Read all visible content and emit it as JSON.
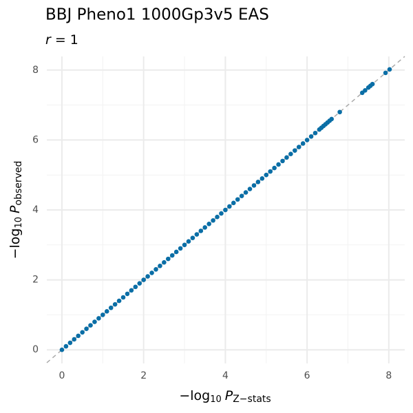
{
  "chart_data": {
    "type": "scatter",
    "title": "BBJ Pheno1 1000Gp3v5 EAS",
    "subtitle": {
      "var": "r",
      "rest": "= 1"
    },
    "x_label": {
      "prefix": "−log",
      "sub": "10",
      "var": "P",
      "subvar": "Z−stats"
    },
    "y_label": {
      "prefix": "−log",
      "sub": "10",
      "var": "P",
      "subvar": "observed"
    },
    "xlim": [
      -0.37,
      8.39
    ],
    "ylim": [
      -0.39,
      8.39
    ],
    "xticks": [
      0,
      2,
      4,
      6,
      8
    ],
    "yticks": [
      0,
      2,
      4,
      6,
      8
    ],
    "x_minor": [
      1,
      3,
      5,
      7
    ],
    "y_minor": [
      1,
      3,
      5,
      7
    ],
    "grid": true,
    "diagonal": true,
    "color": "#0a6ea6",
    "x": [
      0,
      0.1,
      0.2,
      0.3,
      0.4,
      0.5,
      0.6,
      0.7,
      0.8,
      0.9,
      1,
      1.1,
      1.2,
      1.3,
      1.4,
      1.5,
      1.6,
      1.7,
      1.8,
      1.9,
      2,
      2.1,
      2.2,
      2.3,
      2.4,
      2.5,
      2.6,
      2.7,
      2.8,
      2.9,
      3,
      3.1,
      3.2,
      3.3,
      3.4,
      3.5,
      3.6,
      3.7,
      3.8,
      3.9,
      4,
      4.1,
      4.2,
      4.3,
      4.4,
      4.5,
      4.6,
      4.7,
      4.8,
      4.9,
      5,
      5.1,
      5.2,
      5.3,
      5.4,
      5.5,
      5.6,
      5.7,
      5.8,
      5.9,
      6,
      6.1,
      6.2,
      6.3,
      6.35,
      6.4,
      6.45,
      6.5,
      6.55,
      6.6,
      6.8,
      7.35,
      7.42,
      7.5,
      7.55,
      7.6,
      7.92,
      8.02
    ],
    "y": [
      0,
      0.1,
      0.2,
      0.3,
      0.4,
      0.5,
      0.6,
      0.7,
      0.8,
      0.9,
      1,
      1.1,
      1.2,
      1.3,
      1.4,
      1.5,
      1.6,
      1.7,
      1.8,
      1.9,
      2,
      2.1,
      2.2,
      2.3,
      2.4,
      2.5,
      2.6,
      2.7,
      2.8,
      2.9,
      3,
      3.1,
      3.2,
      3.3,
      3.4,
      3.5,
      3.6,
      3.7,
      3.8,
      3.9,
      4,
      4.1,
      4.2,
      4.3,
      4.4,
      4.5,
      4.6,
      4.7,
      4.8,
      4.9,
      5,
      5.1,
      5.2,
      5.3,
      5.4,
      5.5,
      5.6,
      5.7,
      5.8,
      5.9,
      6,
      6.1,
      6.2,
      6.3,
      6.35,
      6.4,
      6.45,
      6.5,
      6.55,
      6.6,
      6.8,
      7.35,
      7.42,
      7.5,
      7.55,
      7.6,
      7.92,
      8.02
    ]
  }
}
